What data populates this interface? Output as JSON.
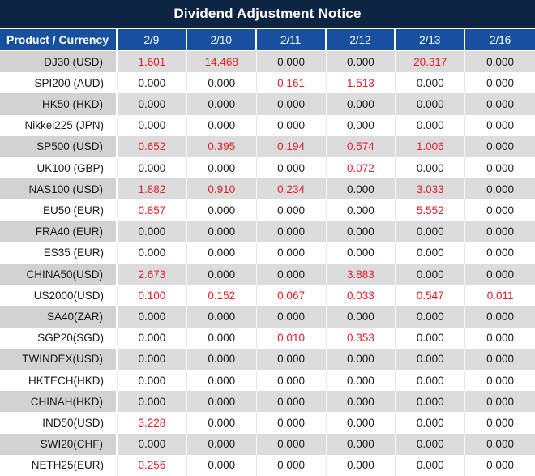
{
  "title": "Dividend Adjustment Notice",
  "colors": {
    "title_bar": "#0d2443",
    "header_blue": "#17509e",
    "red_value": "#e11d28",
    "gray_row": "#dcdcdc",
    "gray_row_product_col": "#d2d2d2"
  },
  "table": {
    "product_header": "Product / Currency",
    "date_headers": [
      "2/9",
      "2/10",
      "2/11",
      "2/12",
      "2/13",
      "2/16"
    ],
    "rows": [
      {
        "product": "DJ30 (USD)",
        "values": [
          "1.601",
          "14.468",
          "0.000",
          "0.000",
          "20.317",
          "0.000"
        ],
        "red": [
          1,
          1,
          0,
          0,
          1,
          0
        ]
      },
      {
        "product": "SPI200 (AUD)",
        "values": [
          "0.000",
          "0.000",
          "0.161",
          "1.513",
          "0.000",
          "0.000"
        ],
        "red": [
          0,
          0,
          1,
          1,
          0,
          0
        ]
      },
      {
        "product": "HK50 (HKD)",
        "values": [
          "0.000",
          "0.000",
          "0.000",
          "0.000",
          "0.000",
          "0.000"
        ],
        "red": [
          0,
          0,
          0,
          0,
          0,
          0
        ]
      },
      {
        "product": "Nikkei225 (JPN)",
        "values": [
          "0.000",
          "0.000",
          "0.000",
          "0.000",
          "0.000",
          "0.000"
        ],
        "red": [
          0,
          0,
          0,
          0,
          0,
          0
        ]
      },
      {
        "product": "SP500 (USD)",
        "values": [
          "0.652",
          "0.395",
          "0.194",
          "0.574",
          "1.006",
          "0.000"
        ],
        "red": [
          1,
          1,
          1,
          1,
          1,
          0
        ]
      },
      {
        "product": "UK100 (GBP)",
        "values": [
          "0.000",
          "0.000",
          "0.000",
          "0.072",
          "0.000",
          "0.000"
        ],
        "red": [
          0,
          0,
          0,
          1,
          0,
          0
        ]
      },
      {
        "product": "NAS100 (USD)",
        "values": [
          "1.882",
          "0.910",
          "0.234",
          "0.000",
          "3.033",
          "0.000"
        ],
        "red": [
          1,
          1,
          1,
          0,
          1,
          0
        ]
      },
      {
        "product": "EU50 (EUR)",
        "values": [
          "0.857",
          "0.000",
          "0.000",
          "0.000",
          "5.552",
          "0.000"
        ],
        "red": [
          1,
          0,
          0,
          0,
          1,
          0
        ]
      },
      {
        "product": "FRA40 (EUR)",
        "values": [
          "0.000",
          "0.000",
          "0.000",
          "0.000",
          "0.000",
          "0.000"
        ],
        "red": [
          0,
          0,
          0,
          0,
          0,
          0
        ]
      },
      {
        "product": "ES35 (EUR)",
        "values": [
          "0.000",
          "0.000",
          "0.000",
          "0.000",
          "0.000",
          "0.000"
        ],
        "red": [
          0,
          0,
          0,
          0,
          0,
          0
        ]
      },
      {
        "product": "CHINA50(USD)",
        "values": [
          "2.673",
          "0.000",
          "0.000",
          "3.883",
          "0.000",
          "0.000"
        ],
        "red": [
          1,
          0,
          0,
          1,
          0,
          0
        ]
      },
      {
        "product": "US2000(USD)",
        "values": [
          "0.100",
          "0.152",
          "0.067",
          "0.033",
          "0.547",
          "0.011"
        ],
        "red": [
          1,
          1,
          1,
          1,
          1,
          1
        ]
      },
      {
        "product": "SA40(ZAR)",
        "values": [
          "0.000",
          "0.000",
          "0.000",
          "0.000",
          "0.000",
          "0.000"
        ],
        "red": [
          0,
          0,
          0,
          0,
          0,
          0
        ]
      },
      {
        "product": "SGP20(SGD)",
        "values": [
          "0.000",
          "0.000",
          "0.010",
          "0.353",
          "0.000",
          "0.000"
        ],
        "red": [
          0,
          0,
          1,
          1,
          0,
          0
        ]
      },
      {
        "product": "TWINDEX(USD)",
        "values": [
          "0.000",
          "0.000",
          "0.000",
          "0.000",
          "0.000",
          "0.000"
        ],
        "red": [
          0,
          0,
          0,
          0,
          0,
          0
        ]
      },
      {
        "product": "HKTECH(HKD)",
        "values": [
          "0.000",
          "0.000",
          "0.000",
          "0.000",
          "0.000",
          "0.000"
        ],
        "red": [
          0,
          0,
          0,
          0,
          0,
          0
        ]
      },
      {
        "product": "CHINAH(HKD)",
        "values": [
          "0.000",
          "0.000",
          "0.000",
          "0.000",
          "0.000",
          "0.000"
        ],
        "red": [
          0,
          0,
          0,
          0,
          0,
          0
        ]
      },
      {
        "product": "IND50(USD)",
        "values": [
          "3.228",
          "0.000",
          "0.000",
          "0.000",
          "0.000",
          "0.000"
        ],
        "red": [
          1,
          0,
          0,
          0,
          0,
          0
        ]
      },
      {
        "product": "SWI20(CHF)",
        "values": [
          "0.000",
          "0.000",
          "0.000",
          "0.000",
          "0.000",
          "0.000"
        ],
        "red": [
          0,
          0,
          0,
          0,
          0,
          0
        ]
      },
      {
        "product": "NETH25(EUR)",
        "values": [
          "0.256",
          "0.000",
          "0.000",
          "0.000",
          "0.000",
          "0.000"
        ],
        "red": [
          1,
          0,
          0,
          0,
          0,
          0
        ]
      }
    ]
  }
}
